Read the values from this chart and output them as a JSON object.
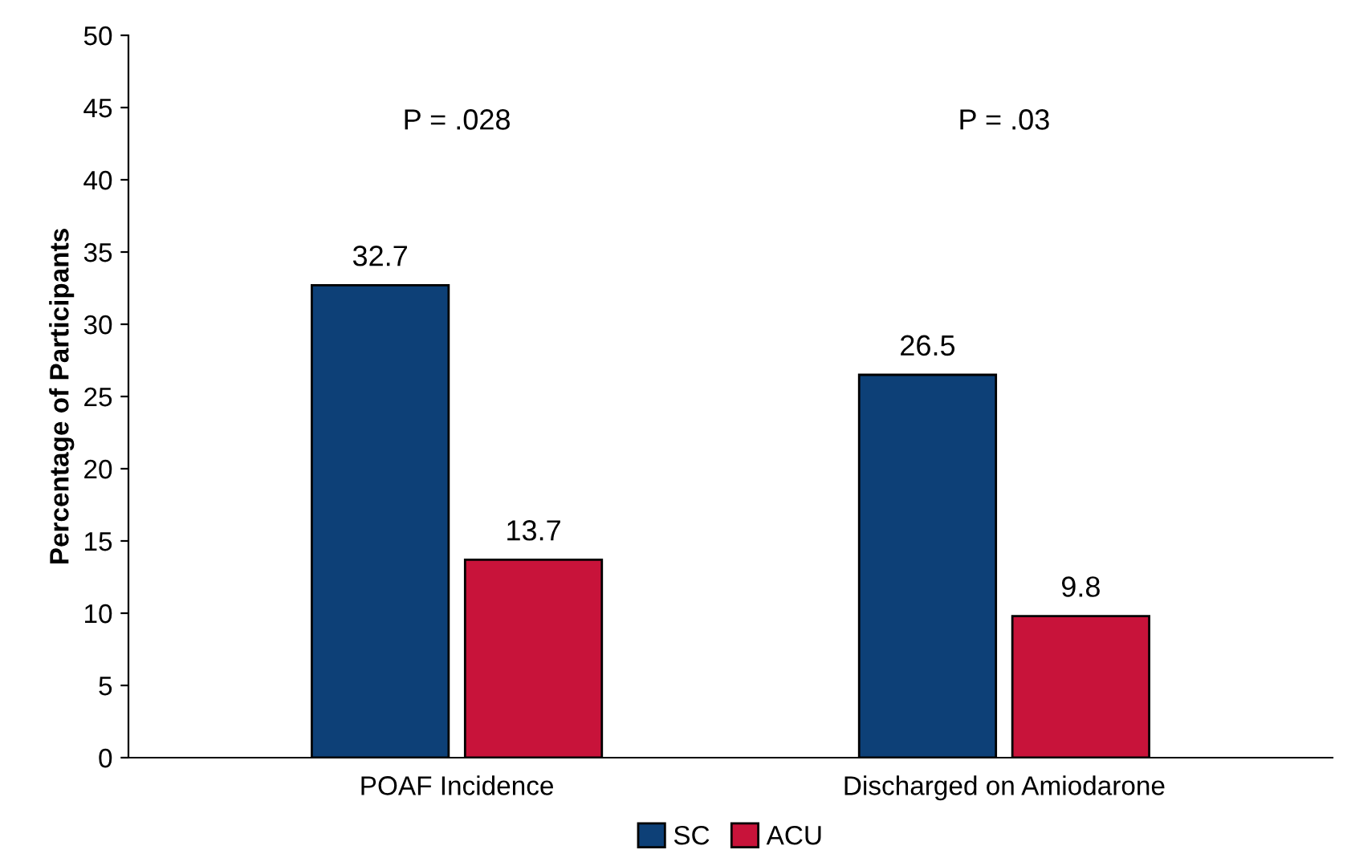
{
  "chart_data": {
    "type": "bar",
    "ylabel": "Percentage of Participants",
    "categories": [
      "POAF Incidence",
      "Discharged on Amiodarone"
    ],
    "series": [
      {
        "name": "SC",
        "color": "#0d4077",
        "values": [
          32.7,
          26.5
        ]
      },
      {
        "name": "ACU",
        "color": "#c8133a",
        "values": [
          13.7,
          9.8
        ]
      }
    ],
    "ylim": [
      0,
      50
    ],
    "yticks": [
      0,
      5,
      10,
      15,
      20,
      25,
      30,
      35,
      40,
      45,
      50
    ],
    "data_labels": true,
    "grid": false,
    "legend": "bottom",
    "annotations": [
      "P = .028",
      "P = .03"
    ]
  }
}
